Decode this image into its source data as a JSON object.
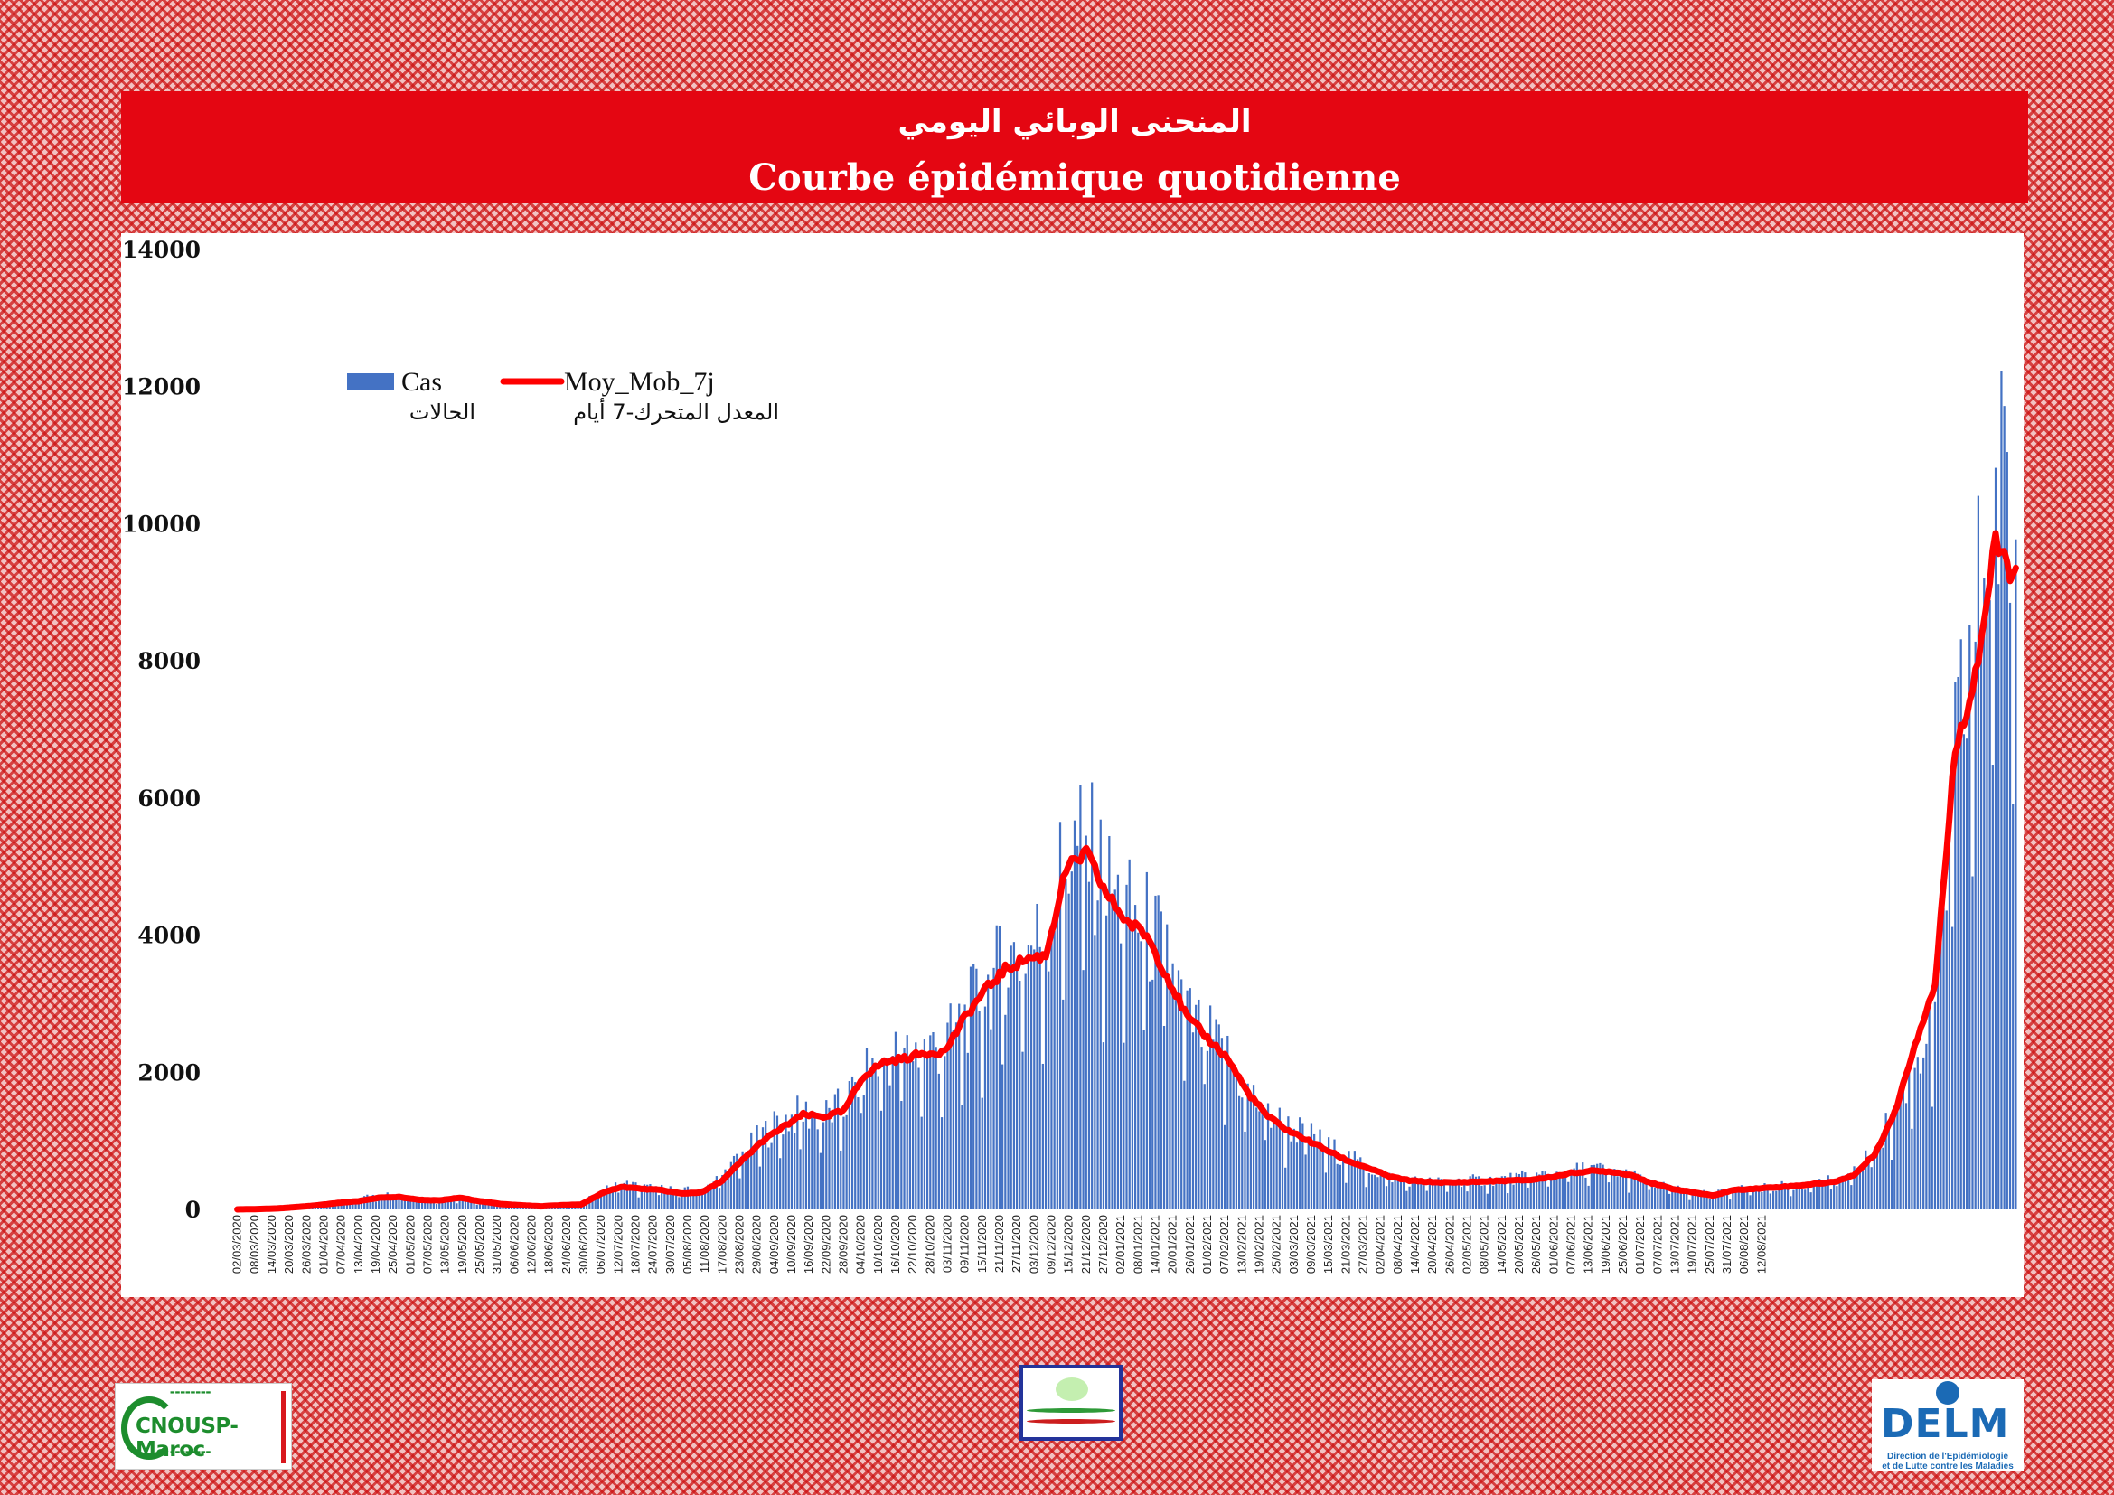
{
  "header": {
    "title_ar": "المنحنى الوبائي اليومي",
    "title_fr": "Courbe épidémique quotidienne"
  },
  "colors": {
    "bars": "#4472c4",
    "line": "#ff0000",
    "banner": "#e40612"
  },
  "chart_data": {
    "type": "bar",
    "title": "Courbe épidémique quotidienne",
    "xlabel": "",
    "ylabel": "",
    "ylim": [
      0,
      14000
    ],
    "yticks": [
      0,
      2000,
      4000,
      6000,
      8000,
      10000,
      12000,
      14000
    ],
    "x_tick_labels": [
      "02/03/2020",
      "08/03/2020",
      "14/03/2020",
      "20/03/2020",
      "26/03/2020",
      "01/04/2020",
      "07/04/2020",
      "13/04/2020",
      "19/04/2020",
      "25/04/2020",
      "01/05/2020",
      "07/05/2020",
      "13/05/2020",
      "19/05/2020",
      "25/05/2020",
      "31/05/2020",
      "06/06/2020",
      "12/06/2020",
      "18/06/2020",
      "24/06/2020",
      "30/06/2020",
      "06/07/2020",
      "12/07/2020",
      "18/07/2020",
      "24/07/2020",
      "30/07/2020",
      "05/08/2020",
      "11/08/2020",
      "17/08/2020",
      "23/08/2020",
      "29/08/2020",
      "04/09/2020",
      "10/09/2020",
      "16/09/2020",
      "22/09/2020",
      "28/09/2020",
      "04/10/2020",
      "10/10/2020",
      "16/10/2020",
      "22/10/2020",
      "28/10/2020",
      "03/11/2020",
      "09/11/2020",
      "15/11/2020",
      "21/11/2020",
      "27/11/2020",
      "03/12/2020",
      "09/12/2020",
      "15/12/2020",
      "21/12/2020",
      "27/12/2020",
      "02/01/2021",
      "08/01/2021",
      "14/01/2021",
      "20/01/2021",
      "26/01/2021",
      "01/02/2021",
      "07/02/2021",
      "13/02/2021",
      "19/02/2021",
      "25/02/2021",
      "03/03/2021",
      "09/03/2021",
      "15/03/2021",
      "21/03/2021",
      "27/03/2021",
      "02/04/2021",
      "08/04/2021",
      "14/04/2021",
      "20/04/2021",
      "26/04/2021",
      "02/05/2021",
      "08/05/2021",
      "14/05/2021",
      "20/05/2021",
      "26/05/2021",
      "01/06/2021",
      "07/06/2021",
      "13/06/2021",
      "19/06/2021",
      "25/06/2021",
      "01/07/2021",
      "07/07/2021",
      "13/07/2021",
      "19/07/2021",
      "25/07/2021",
      "31/07/2021",
      "06/08/2021",
      "12/08/2021"
    ],
    "series": [
      {
        "name": "Cas",
        "name_ar": "الحالات",
        "kind": "bar",
        "weekly_typical_values": [
          1,
          10,
          25,
          40,
          60,
          110,
          160,
          230,
          200,
          150,
          140,
          180,
          120,
          80,
          50,
          40,
          70,
          90,
          260,
          380,
          330,
          300,
          270,
          300,
          500,
          800,
          1100,
          1300,
          1400,
          1350,
          1500,
          2000,
          2200,
          2300,
          2350,
          2400,
          2800,
          3200,
          3600,
          3800,
          4000,
          5200,
          5300,
          4700,
          4300,
          4100,
          3700,
          2800,
          2500,
          2200,
          1700,
          1400,
          1200,
          1100,
          900,
          750,
          600,
          480,
          420,
          400,
          400,
          420,
          430,
          450,
          480,
          520,
          560,
          600,
          560,
          500,
          380,
          300,
          250,
          220,
          300,
          310,
          330,
          350,
          380,
          420,
          520,
          900,
          1400,
          2200,
          2800,
          6500,
          8500,
          10500,
          9900
        ]
      },
      {
        "name": "Moy_Mob_7j",
        "name_ar": "المعدل المتحرك-7 أيام",
        "kind": "line",
        "weekly_values": [
          0,
          5,
          15,
          35,
          60,
          95,
          120,
          170,
          180,
          140,
          130,
          170,
          120,
          80,
          60,
          45,
          60,
          70,
          230,
          330,
          300,
          280,
          230,
          250,
          420,
          720,
          1000,
          1200,
          1380,
          1350,
          1430,
          1950,
          2150,
          2200,
          2280,
          2300,
          2800,
          3200,
          3500,
          3650,
          3700,
          4950,
          5200,
          4600,
          4200,
          4000,
          3400,
          2800,
          2500,
          2200,
          1700,
          1350,
          1150,
          1000,
          850,
          700,
          600,
          480,
          420,
          400,
          390,
          400,
          410,
          420,
          430,
          470,
          530,
          560,
          550,
          500,
          380,
          300,
          250,
          200,
          280,
          300,
          320,
          340,
          370,
          400,
          500,
          800,
          1400,
          2400,
          3300,
          6700,
          7800,
          9700,
          9200
        ]
      }
    ],
    "legend": "top-left",
    "grid": false
  },
  "logos": {
    "left": {
      "name": "CNOUSP-Maroc"
    },
    "right": {
      "name": "DELM",
      "subtitle_line1": "Direction de l'Epidémiologie",
      "subtitle_line2": "et de Lutte contre les Maladies"
    }
  }
}
